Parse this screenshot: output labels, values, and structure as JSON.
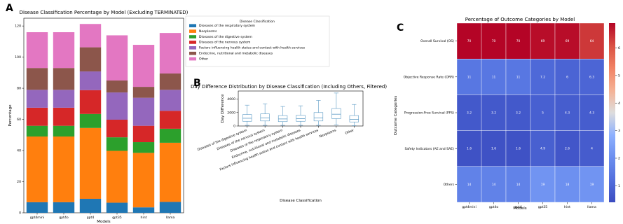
{
  "panels": {
    "a": {
      "letter": "A",
      "chart_data": {
        "type": "bar",
        "stacked": true,
        "title": "Disease Classification Percentage by Model (Excluding TERMINATED)",
        "xlabel": "Models",
        "ylabel": "Percentage",
        "ylim": [
          0,
          125
        ],
        "yticks": [
          0,
          20,
          40,
          60,
          80,
          100,
          120
        ],
        "grid": false,
        "legend_title": "Disease Classification",
        "legend_position": "top-right",
        "categories": [
          "gpt4mini",
          "gpt4o",
          "gpt4",
          "gpt35",
          "hint",
          "llama"
        ],
        "series": [
          {
            "name": "Diseases of the respiratory system",
            "color": "#1f77b4",
            "values": [
              6.8,
              6.8,
              9.0,
              6.5,
              3.5,
              7.0
            ]
          },
          {
            "name": "Neoplasms",
            "color": "#ff7f0e",
            "values": [
              42.2,
              42.2,
              45.5,
              33.3,
              35.0,
              38.0
            ]
          },
          {
            "name": "Diseases of the digestive system",
            "color": "#2ca02c",
            "values": [
              6.9,
              6.9,
              9.0,
              8.7,
              6.9,
              9.0
            ]
          },
          {
            "name": "Diseases of the nervous system",
            "color": "#d62728",
            "values": [
              11.6,
              11.6,
              15.3,
              11.3,
              10.5,
              11.5
            ]
          },
          {
            "name": "Factors influencing health status and contact with health services",
            "color": "#9467bd",
            "values": [
              11.5,
              11.5,
              12.0,
              17.5,
              18.0,
              13.5
            ]
          },
          {
            "name": "Endocrine, nutritional and metabolic diseases",
            "color": "#8c564b",
            "values": [
              14.0,
              14.0,
              15.5,
              7.7,
              7.0,
              10.5
            ]
          },
          {
            "name": "Other",
            "color": "#e377c2",
            "values": [
              23.0,
              23.0,
              15.0,
              29.0,
              27.0,
              26.0
            ]
          }
        ]
      }
    },
    "b": {
      "letter": "B",
      "chart_data": {
        "type": "box",
        "title": "Day Difference Distribution by Disease Classification (Including Others, Filtered)",
        "xlabel": "Disease Classification",
        "ylabel": "Day Difference",
        "ylim": [
          0,
          5200
        ],
        "yticks": [
          0,
          2000,
          4000
        ],
        "color": "#5b9ac4",
        "categories": [
          "Diseases of the digestive system",
          "Diseases of the nervous system",
          "Diseases of the respiratory system",
          "Endocrine, nutritional and metabolic diseases",
          "Factors influencing health status and contact with health services",
          "Neoplasms",
          "Other"
        ],
        "boxes": [
          {
            "whisker_low": 100,
            "q1": 700,
            "median": 1150,
            "q3": 1700,
            "whisker_high": 3100
          },
          {
            "whisker_low": 100,
            "q1": 750,
            "median": 1200,
            "q3": 1800,
            "whisker_high": 3300
          },
          {
            "whisker_low": 100,
            "q1": 650,
            "median": 1050,
            "q3": 1550,
            "whisker_high": 2900
          },
          {
            "whisker_low": 100,
            "q1": 700,
            "median": 1100,
            "q3": 1600,
            "whisker_high": 3000
          },
          {
            "whisker_low": 100,
            "q1": 750,
            "median": 1200,
            "q3": 2000,
            "whisker_high": 3800
          },
          {
            "whisker_low": 150,
            "q1": 1100,
            "median": 1750,
            "q3": 2600,
            "whisker_high": 4900
          },
          {
            "whisker_low": 50,
            "q1": 600,
            "median": 1000,
            "q3": 1550,
            "whisker_high": 3200
          }
        ]
      }
    },
    "c": {
      "letter": "C",
      "chart_data": {
        "type": "heatmap",
        "title": "Percentage of Outcome Categories by Model",
        "xlabel": "Models",
        "ylabel": "Outcome Categories",
        "x": [
          "gpt4mini",
          "gpt4o",
          "gpt4",
          "gpt35",
          "hint",
          "llama"
        ],
        "y": [
          "Overall Survival (OS)",
          "Objective Response Rate (ORR)",
          "Progression-Free Survival (PFS)",
          "Safety Indicators (AE and SAE)",
          "Others"
        ],
        "values": [
          [
            70,
            70,
            70,
            69,
            69,
            64
          ],
          [
            11,
            11,
            11,
            7.2,
            6,
            6.3
          ],
          [
            3.2,
            3.2,
            3.2,
            5,
            4.3,
            4.3
          ],
          [
            1.6,
            1.6,
            1.6,
            4.9,
            2.6,
            4
          ],
          [
            14,
            14,
            14,
            19,
            18,
            19
          ]
        ],
        "colormap": "coolwarm",
        "vmin": 0,
        "vmax": 70,
        "colorbar_ticks": [
          1,
          2,
          3,
          4,
          5,
          6
        ]
      }
    }
  }
}
